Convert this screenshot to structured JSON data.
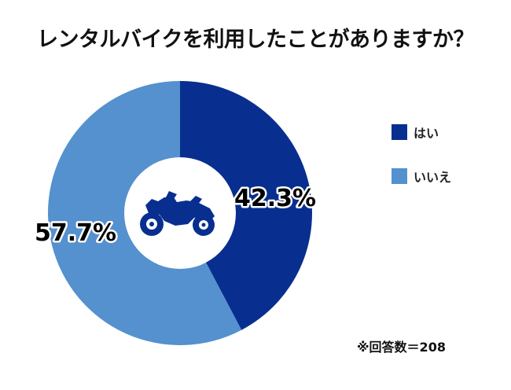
{
  "chart_data": {
    "type": "pie",
    "title": "レンタルバイクを利用したことがありますか？",
    "categories": [
      "はい",
      "いいえ"
    ],
    "values": [
      42.3,
      57.7
    ],
    "value_labels": [
      "42.3%",
      "57.7%"
    ],
    "colors": [
      "#082f8f",
      "#5491ce"
    ],
    "legend_position": "right",
    "donut": true,
    "center_icon": "motorcycle-icon"
  },
  "note": "※回答数＝208"
}
